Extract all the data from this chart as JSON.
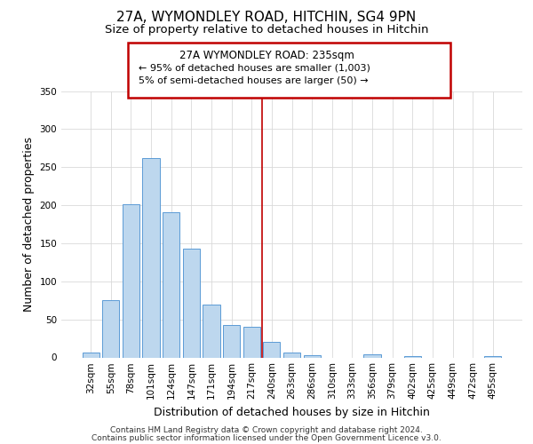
{
  "title": "27A, WYMONDLEY ROAD, HITCHIN, SG4 9PN",
  "subtitle": "Size of property relative to detached houses in Hitchin",
  "xlabel": "Distribution of detached houses by size in Hitchin",
  "ylabel": "Number of detached properties",
  "bar_labels": [
    "32sqm",
    "55sqm",
    "78sqm",
    "101sqm",
    "124sqm",
    "147sqm",
    "171sqm",
    "194sqm",
    "217sqm",
    "240sqm",
    "263sqm",
    "286sqm",
    "310sqm",
    "333sqm",
    "356sqm",
    "379sqm",
    "402sqm",
    "425sqm",
    "449sqm",
    "472sqm",
    "495sqm"
  ],
  "bar_values": [
    6,
    75,
    201,
    262,
    191,
    143,
    70,
    43,
    40,
    20,
    6,
    3,
    0,
    0,
    4,
    0,
    2,
    0,
    0,
    0,
    2
  ],
  "bar_color": "#bdd7ee",
  "bar_edge_color": "#5b9bd5",
  "vline_x_index": 9,
  "vline_color": "#c00000",
  "annotation_title": "27A WYMONDLEY ROAD: 235sqm",
  "annotation_line1": "← 95% of detached houses are smaller (1,003)",
  "annotation_line2": "5% of semi-detached houses are larger (50) →",
  "annotation_box_color": "#ffffff",
  "annotation_box_edge_color": "#c00000",
  "ylim": [
    0,
    350
  ],
  "yticks": [
    0,
    50,
    100,
    150,
    200,
    250,
    300,
    350
  ],
  "footer_line1": "Contains HM Land Registry data © Crown copyright and database right 2024.",
  "footer_line2": "Contains public sector information licensed under the Open Government Licence v3.0.",
  "background_color": "#ffffff",
  "grid_color": "#d9d9d9",
  "title_fontsize": 11,
  "subtitle_fontsize": 9.5,
  "axis_label_fontsize": 9,
  "tick_fontsize": 7.5,
  "footer_fontsize": 6.5
}
